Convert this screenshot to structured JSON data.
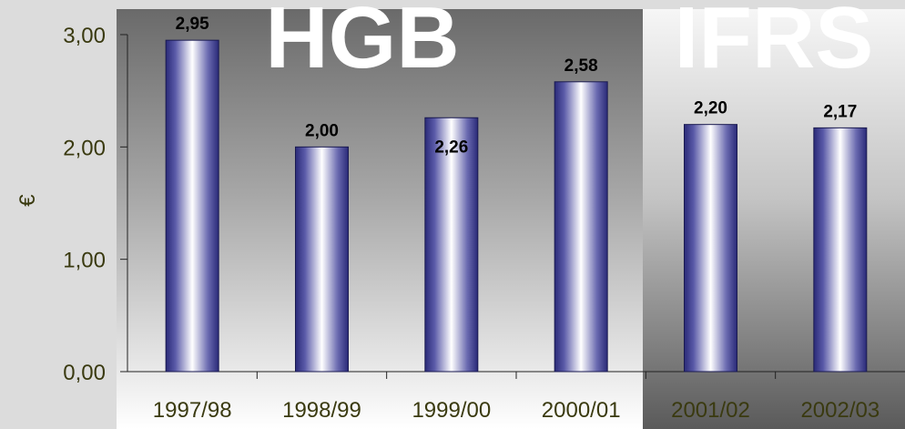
{
  "chart_data": {
    "type": "bar",
    "categories": [
      "1997/98",
      "1998/99",
      "1999/00",
      "2000/01",
      "2001/02",
      "2002/03"
    ],
    "values": [
      2.95,
      2.0,
      2.26,
      2.58,
      2.2,
      2.17
    ],
    "value_labels": [
      "2,95",
      "2,00",
      "2,26",
      "2,58",
      "2,20",
      "2,17"
    ],
    "ylabel": "€",
    "ylim": [
      0,
      3
    ],
    "yticks": [
      0,
      1,
      2,
      3
    ],
    "ytick_labels": [
      "0,00",
      "1,00",
      "2,00",
      "3,00"
    ],
    "grid": false,
    "sections": [
      {
        "label": "HGB",
        "categories": [
          "1997/98",
          "1998/99",
          "1999/00",
          "2000/01"
        ]
      },
      {
        "label": "IFRS",
        "categories": [
          "2001/02",
          "2002/03"
        ]
      }
    ],
    "colors": {
      "bar_dark": "#2a2a78",
      "bar_light": "#ffffff",
      "text": "#3a3a10",
      "section_label": "#ffffff"
    }
  }
}
